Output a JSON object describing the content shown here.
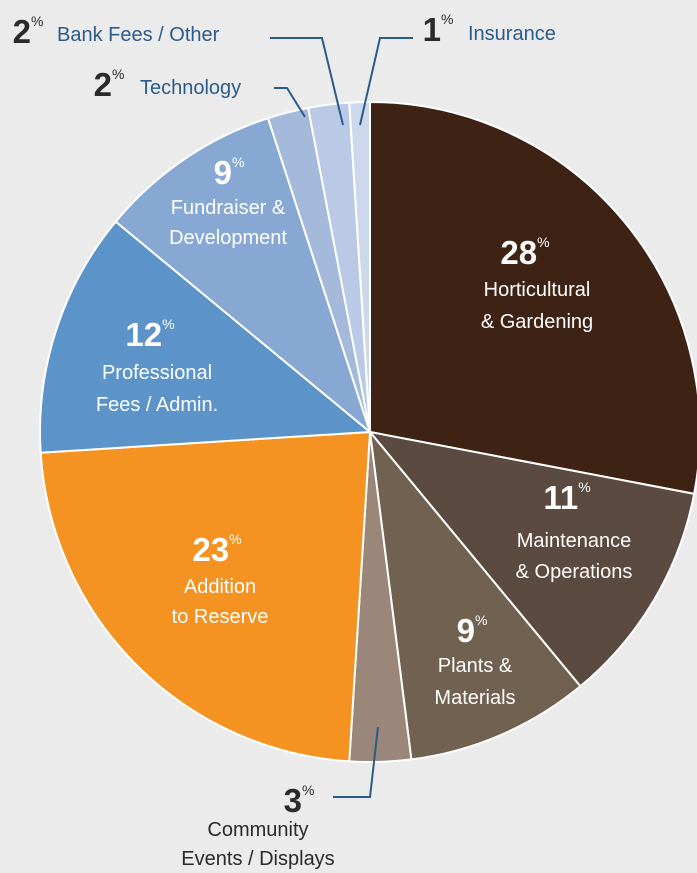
{
  "chart_data": {
    "type": "pie",
    "unit": "%",
    "labels": [
      [
        "Horticultural",
        "& Gardening"
      ],
      [
        "Maintenance",
        "& Operations"
      ],
      [
        "Plants &",
        "Materials"
      ],
      [
        "Community",
        "Events / Displays"
      ],
      [
        "Addition",
        "to Reserve"
      ],
      [
        "Professional",
        "Fees / Admin."
      ],
      [
        "Fundraiser &",
        "Development"
      ],
      [
        "Technology"
      ],
      [
        "Bank Fees / Other"
      ],
      [
        "Insurance"
      ]
    ],
    "values": [
      28,
      11,
      9,
      3,
      23,
      12,
      9,
      2,
      2,
      1
    ],
    "colors": [
      "#3e2314",
      "#5a4a40",
      "#706151",
      "#9b867a",
      "#f49322",
      "#5c94c9",
      "#87a8d3",
      "#a5b9db",
      "#bac9e5",
      "#cdd8ed"
    ]
  }
}
